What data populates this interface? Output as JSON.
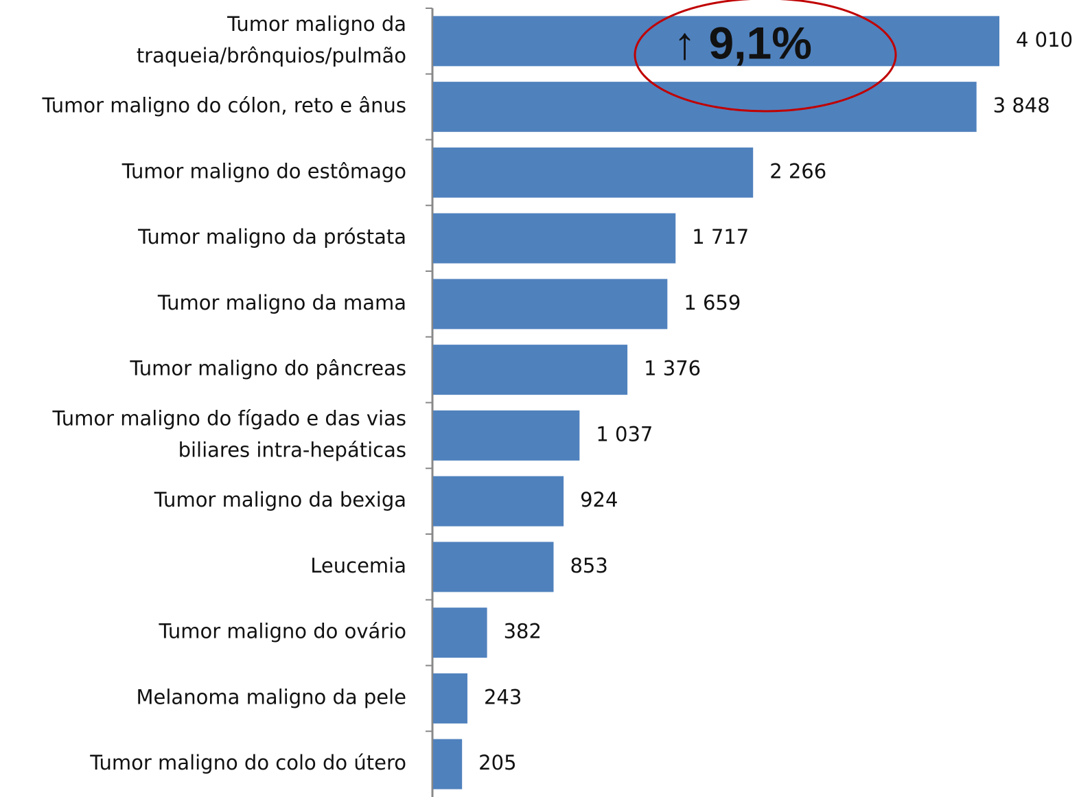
{
  "chart_data": {
    "type": "barh",
    "categories": [
      "Tumor maligno da\ntraqueia/brônquios/pulmão",
      "Tumor maligno do cólon, reto e ânus",
      "Tumor maligno do estômago",
      "Tumor maligno da próstata",
      "Tumor maligno da mama",
      "Tumor maligno do pâncreas",
      "Tumor maligno do fígado e das vias\nbiliares intra-hepáticas",
      "Tumor maligno da bexiga",
      "Leucemia",
      "Tumor maligno do ovário",
      "Melanoma maligno da pele",
      "Tumor maligno do colo do útero"
    ],
    "values": [
      4010,
      3848,
      2266,
      1717,
      1659,
      1376,
      1037,
      924,
      853,
      382,
      243,
      205
    ],
    "value_labels": [
      "4 010",
      "3 848",
      "2 266",
      "1 717",
      "1 659",
      "1 376",
      "1 037",
      "924",
      "853",
      "382",
      "243",
      "205"
    ],
    "color": "#4f81bd",
    "xlim": [
      0,
      4010
    ],
    "annotation": "↑ 9,1%",
    "annotation_color": "#c00000"
  }
}
